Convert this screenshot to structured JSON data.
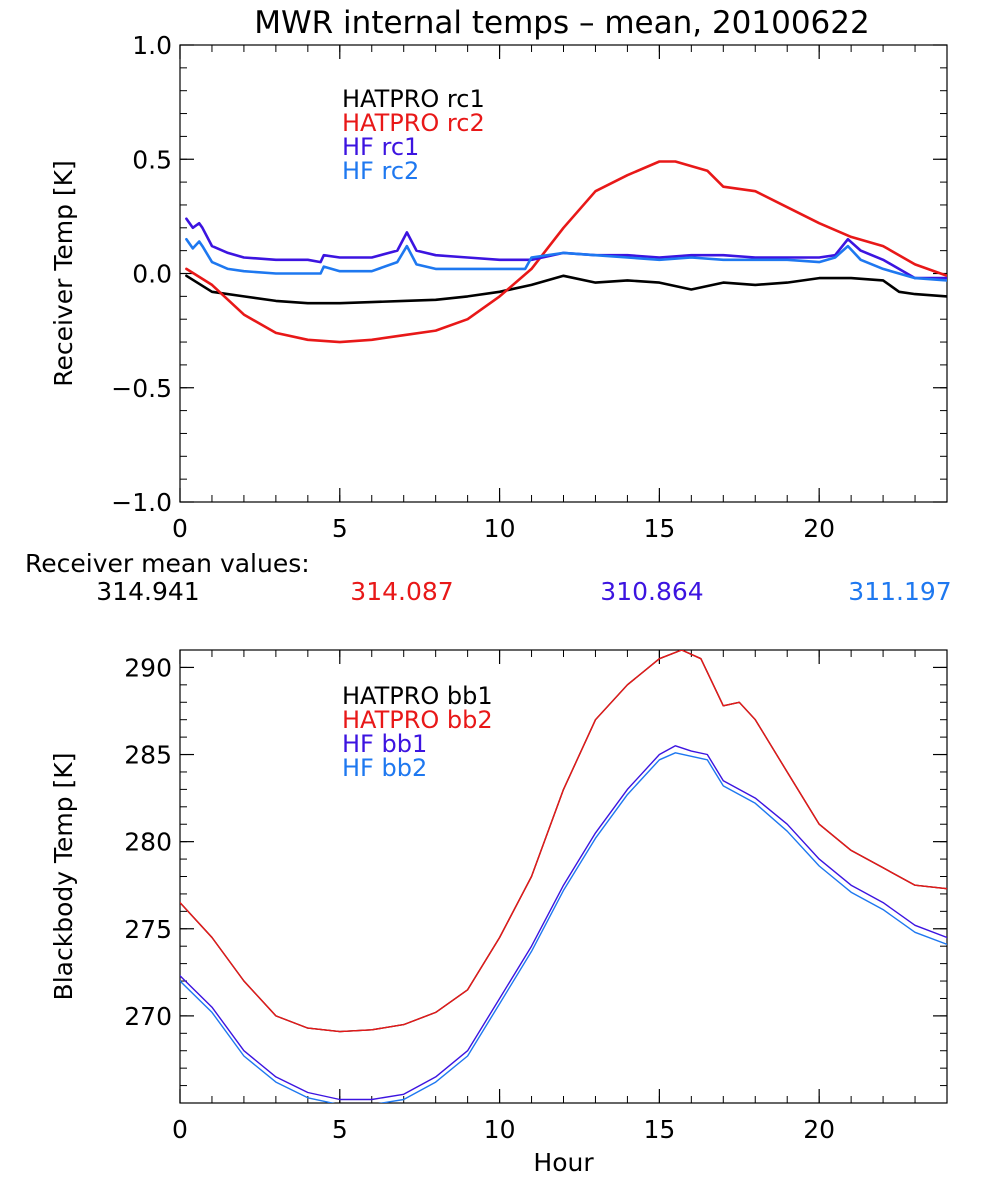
{
  "title": "MWR internal temps – mean, 20100622",
  "colors": {
    "hatpro1": "#000000",
    "hatpro2": "#e81818",
    "hf1": "#3c14e0",
    "hf2": "#1e78f0"
  },
  "mean_values": {
    "label": "Receiver mean values:",
    "values": [
      "314.941",
      "314.087",
      "310.864",
      "311.197"
    ]
  },
  "chart_data": [
    {
      "type": "line",
      "ylabel": "Receiver Temp [K]",
      "xlabel": "",
      "xlim": [
        0,
        24
      ],
      "ylim": [
        -1.0,
        1.0
      ],
      "xticks": [
        0,
        5,
        10,
        15,
        20
      ],
      "xtick_labels": [
        "0",
        "5",
        "10",
        "15",
        "20"
      ],
      "yticks": [
        -1.0,
        -0.5,
        0.0,
        0.5,
        1.0
      ],
      "ytick_labels": [
        "−1.0",
        "−0.5",
        "0.0",
        "0.5",
        "1.0"
      ],
      "legend_placement": "top-left-inside",
      "series": [
        {
          "name": "HATPRO rc1",
          "color_key": "hatpro1",
          "x": [
            0.2,
            1,
            2,
            3,
            4,
            5,
            6,
            7,
            8,
            9,
            10,
            11,
            12,
            13,
            14,
            15,
            16,
            17,
            18,
            19,
            20,
            21,
            22,
            22.5,
            23,
            24
          ],
          "y": [
            -0.01,
            -0.08,
            -0.1,
            -0.12,
            -0.13,
            -0.13,
            -0.125,
            -0.12,
            -0.115,
            -0.1,
            -0.08,
            -0.05,
            -0.01,
            -0.04,
            -0.03,
            -0.04,
            -0.07,
            -0.04,
            -0.05,
            -0.04,
            -0.02,
            -0.02,
            -0.03,
            -0.08,
            -0.09,
            -0.1
          ]
        },
        {
          "name": "HATPRO rc2",
          "color_key": "hatpro2",
          "x": [
            0.2,
            1,
            2,
            3,
            4,
            5,
            6,
            7,
            8,
            9,
            10,
            11,
            12,
            13,
            14,
            15,
            15.5,
            16,
            16.5,
            17,
            18,
            19,
            20,
            21,
            22,
            23,
            24
          ],
          "y": [
            0.02,
            -0.05,
            -0.18,
            -0.26,
            -0.29,
            -0.3,
            -0.29,
            -0.27,
            -0.25,
            -0.2,
            -0.1,
            0.02,
            0.2,
            0.36,
            0.43,
            0.49,
            0.49,
            0.47,
            0.45,
            0.38,
            0.36,
            0.29,
            0.22,
            0.16,
            0.12,
            0.04,
            -0.01
          ]
        },
        {
          "name": "HF rc1",
          "color_key": "hf1",
          "x": [
            0.2,
            0.4,
            0.6,
            0.7,
            1,
            1.5,
            2,
            3,
            4,
            4.4,
            4.5,
            5,
            6,
            6.8,
            7.1,
            7.4,
            8,
            9,
            10,
            11,
            12,
            13,
            14,
            15,
            16,
            17,
            18,
            19,
            20,
            20.5,
            20.9,
            21.3,
            22,
            23,
            24
          ],
          "y": [
            0.24,
            0.2,
            0.22,
            0.2,
            0.12,
            0.09,
            0.07,
            0.06,
            0.06,
            0.05,
            0.08,
            0.07,
            0.07,
            0.1,
            0.18,
            0.1,
            0.08,
            0.07,
            0.06,
            0.06,
            0.09,
            0.08,
            0.08,
            0.07,
            0.08,
            0.08,
            0.07,
            0.07,
            0.07,
            0.08,
            0.15,
            0.1,
            0.06,
            -0.02,
            -0.02
          ]
        },
        {
          "name": "HF rc2",
          "color_key": "hf2",
          "x": [
            0.2,
            0.4,
            0.6,
            0.7,
            1,
            1.5,
            2,
            3,
            4,
            4.4,
            4.5,
            5,
            6,
            6.8,
            7.1,
            7.4,
            8,
            9,
            10,
            10.8,
            11,
            12,
            13,
            14,
            15,
            16,
            17,
            18,
            19,
            20,
            20.5,
            20.9,
            21.3,
            22,
            23,
            24
          ],
          "y": [
            0.15,
            0.11,
            0.14,
            0.12,
            0.05,
            0.02,
            0.01,
            0.0,
            0.0,
            0.0,
            0.03,
            0.01,
            0.01,
            0.05,
            0.12,
            0.04,
            0.02,
            0.02,
            0.02,
            0.02,
            0.07,
            0.09,
            0.08,
            0.07,
            0.06,
            0.07,
            0.06,
            0.06,
            0.06,
            0.05,
            0.07,
            0.12,
            0.06,
            0.02,
            -0.02,
            -0.03
          ]
        }
      ]
    },
    {
      "type": "line",
      "ylabel": "Blackbody Temp [K]",
      "xlabel": "Hour",
      "xlim": [
        0,
        24
      ],
      "ylim": [
        265,
        291
      ],
      "xticks": [
        0,
        5,
        10,
        15,
        20
      ],
      "xtick_labels": [
        "0",
        "5",
        "10",
        "15",
        "20"
      ],
      "yticks": [
        270,
        275,
        280,
        285,
        290
      ],
      "ytick_labels": [
        "270",
        "275",
        "280",
        "285",
        "290"
      ],
      "legend_placement": "top-left-inside",
      "series": [
        {
          "name": "HATPRO bb1",
          "color_key": "hatpro1",
          "x": [
            0,
            1,
            2,
            3,
            4,
            5,
            6,
            7,
            8,
            9,
            10,
            11,
            12,
            13,
            14,
            15,
            15.7,
            16.3,
            17,
            17.5,
            18,
            19,
            20,
            21,
            22,
            23,
            24
          ],
          "y": [
            276.5,
            274.5,
            272,
            270,
            269.3,
            269.1,
            269.2,
            269.5,
            270.2,
            271.5,
            274.5,
            278,
            283,
            287,
            289,
            290.5,
            291,
            290.5,
            287.8,
            288,
            287,
            284,
            281,
            279.5,
            278.5,
            277.5,
            277.3
          ]
        },
        {
          "name": "HATPRO bb2",
          "color_key": "hatpro2",
          "x": [
            0,
            1,
            2,
            3,
            4,
            5,
            6,
            7,
            8,
            9,
            10,
            11,
            12,
            13,
            14,
            15,
            15.7,
            16.3,
            17,
            17.5,
            18,
            19,
            20,
            21,
            22,
            23,
            24
          ],
          "y": [
            276.5,
            274.5,
            272,
            270,
            269.3,
            269.1,
            269.2,
            269.5,
            270.2,
            271.5,
            274.5,
            278,
            283,
            287,
            289,
            290.5,
            291,
            290.5,
            287.8,
            288,
            287,
            284,
            281,
            279.5,
            278.5,
            277.5,
            277.3
          ]
        },
        {
          "name": "HF bb1",
          "color_key": "hf1",
          "x": [
            0,
            1,
            2,
            3,
            4,
            5,
            6,
            7,
            8,
            9,
            10,
            11,
            12,
            13,
            14,
            15,
            15.5,
            16,
            16.5,
            17,
            18,
            19,
            20,
            21,
            22,
            23,
            24
          ],
          "y": [
            272.3,
            270.5,
            268,
            266.5,
            265.6,
            265.2,
            265.2,
            265.5,
            266.5,
            268,
            271,
            274,
            277.5,
            280.5,
            283,
            285,
            285.5,
            285.2,
            285,
            283.5,
            282.5,
            281,
            279,
            277.5,
            276.5,
            275.2,
            274.5
          ]
        },
        {
          "name": "HF bb2",
          "color_key": "hf2",
          "x": [
            0,
            1,
            2,
            3,
            4,
            5,
            6,
            7,
            8,
            9,
            10,
            11,
            12,
            13,
            14,
            15,
            15.5,
            16,
            16.5,
            17,
            18,
            19,
            20,
            21,
            22,
            23,
            24
          ],
          "y": [
            272.0,
            270.2,
            267.7,
            266.2,
            265.3,
            264.9,
            264.9,
            265.2,
            266.2,
            267.7,
            270.7,
            273.7,
            277.2,
            280.2,
            282.7,
            284.7,
            285.1,
            284.9,
            284.7,
            283.2,
            282.2,
            280.6,
            278.6,
            277.1,
            276.1,
            274.8,
            274.1
          ]
        }
      ]
    }
  ]
}
